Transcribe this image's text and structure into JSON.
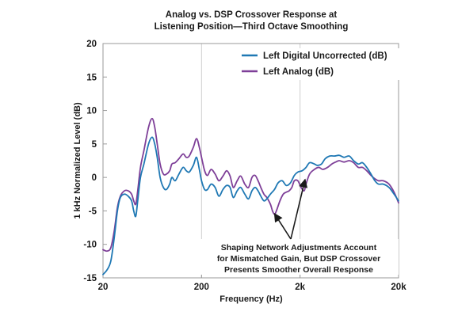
{
  "chart_data": {
    "type": "line",
    "title_lines": [
      "Analog vs. DSP Crossover Response at",
      "Listening Position—Third Octave Smoothing"
    ],
    "xlabel": "Frequency (Hz)",
    "ylabel": "1 kHz Normalized Level (dB)",
    "x_scale": "log",
    "xlim": [
      20,
      20000
    ],
    "ylim": [
      -15,
      20
    ],
    "x_ticks": [
      {
        "value": 20,
        "label": "20"
      },
      {
        "value": 200,
        "label": "200"
      },
      {
        "value": 2000,
        "label": "2k"
      },
      {
        "value": 20000,
        "label": "20k"
      }
    ],
    "y_ticks": [
      {
        "value": 20,
        "label": "20"
      },
      {
        "value": 15,
        "label": "15"
      },
      {
        "value": 10,
        "label": "10"
      },
      {
        "value": 5,
        "label": "5"
      },
      {
        "value": 0,
        "label": "0"
      },
      {
        "value": -5,
        "label": "-5"
      },
      {
        "value": -10,
        "label": "-10"
      },
      {
        "value": -15,
        "label": "-15"
      }
    ],
    "grid": true,
    "legend_position": "top-right",
    "series": [
      {
        "name": "Left Digital Uncorrected (dB)",
        "color": "#1f78b4",
        "points": [
          [
            20,
            -14.5
          ],
          [
            22,
            -13.8
          ],
          [
            24,
            -12.5
          ],
          [
            26,
            -9
          ],
          [
            28,
            -5
          ],
          [
            30,
            -3
          ],
          [
            33,
            -2.5
          ],
          [
            36,
            -2.8
          ],
          [
            39,
            -3.5
          ],
          [
            41,
            -5
          ],
          [
            43,
            -5.8
          ],
          [
            45,
            -3.5
          ],
          [
            48,
            0
          ],
          [
            52,
            2
          ],
          [
            58,
            5
          ],
          [
            63,
            6
          ],
          [
            67,
            5
          ],
          [
            71,
            3
          ],
          [
            76,
            0
          ],
          [
            82,
            -1.5
          ],
          [
            88,
            -1.8
          ],
          [
            95,
            -1
          ],
          [
            100,
            0
          ],
          [
            108,
            -0.5
          ],
          [
            118,
            0.5
          ],
          [
            130,
            1.5
          ],
          [
            140,
            1
          ],
          [
            150,
            0.8
          ],
          [
            165,
            1.8
          ],
          [
            178,
            3
          ],
          [
            190,
            1.2
          ],
          [
            200,
            -0.5
          ],
          [
            215,
            -1.8
          ],
          [
            230,
            -1.8
          ],
          [
            250,
            -1
          ],
          [
            275,
            -1.5
          ],
          [
            300,
            -2.8
          ],
          [
            330,
            -1.8
          ],
          [
            360,
            -1.2
          ],
          [
            390,
            -1.5
          ],
          [
            420,
            -3
          ],
          [
            460,
            -2
          ],
          [
            500,
            -1.5
          ],
          [
            550,
            -2.5
          ],
          [
            600,
            -3.2
          ],
          [
            650,
            -2
          ],
          [
            700,
            -1.5
          ],
          [
            750,
            -2
          ],
          [
            800,
            -2.8
          ],
          [
            860,
            -3.5
          ],
          [
            920,
            -3.2
          ],
          [
            1000,
            -2.5
          ],
          [
            1100,
            -1.8
          ],
          [
            1200,
            -0.8
          ],
          [
            1320,
            -0.5
          ],
          [
            1450,
            -1.2
          ],
          [
            1600,
            -0.8
          ],
          [
            1750,
            0.3
          ],
          [
            1900,
            0.8
          ],
          [
            2100,
            1
          ],
          [
            2300,
            1.5
          ],
          [
            2500,
            2.2
          ],
          [
            2800,
            2
          ],
          [
            3000,
            1.8
          ],
          [
            3300,
            2
          ],
          [
            3600,
            2.8
          ],
          [
            4000,
            3.2
          ],
          [
            4500,
            3.2
          ],
          [
            5000,
            3.3
          ],
          [
            5600,
            3
          ],
          [
            6300,
            3.2
          ],
          [
            7000,
            2.5
          ],
          [
            7800,
            2
          ],
          [
            8600,
            2.2
          ],
          [
            9500,
            1.5
          ],
          [
            10500,
            0.5
          ],
          [
            11500,
            -0.5
          ],
          [
            12500,
            -1
          ],
          [
            14000,
            -1
          ],
          [
            16000,
            -1.5
          ],
          [
            18000,
            -2.5
          ],
          [
            20000,
            -3.5
          ]
        ]
      },
      {
        "name": "Left Analog (dB)",
        "color": "#7e3f98",
        "points": [
          [
            20,
            -10.8
          ],
          [
            22,
            -11
          ],
          [
            24,
            -10.5
          ],
          [
            26,
            -8
          ],
          [
            28,
            -4.5
          ],
          [
            30,
            -2.8
          ],
          [
            33,
            -2
          ],
          [
            36,
            -2
          ],
          [
            39,
            -2.5
          ],
          [
            41,
            -3.5
          ],
          [
            43,
            -4
          ],
          [
            45,
            -2
          ],
          [
            48,
            1.5
          ],
          [
            52,
            4
          ],
          [
            58,
            7.5
          ],
          [
            63,
            8.8
          ],
          [
            67,
            7.5
          ],
          [
            71,
            5
          ],
          [
            76,
            2
          ],
          [
            82,
            0.5
          ],
          [
            88,
            0.5
          ],
          [
            95,
            1
          ],
          [
            100,
            2
          ],
          [
            108,
            2.2
          ],
          [
            118,
            2.8
          ],
          [
            130,
            3.5
          ],
          [
            140,
            3
          ],
          [
            150,
            3.2
          ],
          [
            165,
            4.5
          ],
          [
            178,
            5.8
          ],
          [
            190,
            4.5
          ],
          [
            200,
            3
          ],
          [
            215,
            1
          ],
          [
            230,
            0.3
          ],
          [
            250,
            1.2
          ],
          [
            275,
            0.5
          ],
          [
            300,
            -0.5
          ],
          [
            330,
            0.2
          ],
          [
            360,
            1
          ],
          [
            390,
            0.2
          ],
          [
            420,
            -1.5
          ],
          [
            460,
            -0.5
          ],
          [
            500,
            0.2
          ],
          [
            550,
            -1
          ],
          [
            600,
            -1.5
          ],
          [
            650,
            0
          ],
          [
            700,
            0.3
          ],
          [
            750,
            -0.5
          ],
          [
            800,
            -1.5
          ],
          [
            860,
            -2.5
          ],
          [
            920,
            -3
          ],
          [
            1000,
            -4
          ],
          [
            1050,
            -5
          ],
          [
            1100,
            -5.5
          ],
          [
            1150,
            -5
          ],
          [
            1250,
            -3.5
          ],
          [
            1350,
            -2.5
          ],
          [
            1450,
            -2.2
          ],
          [
            1550,
            -2
          ],
          [
            1650,
            -1.5
          ],
          [
            1750,
            -0.5
          ],
          [
            1900,
            -0.5
          ],
          [
            2050,
            -1.5
          ],
          [
            2200,
            -2
          ],
          [
            2300,
            -1
          ],
          [
            2500,
            0.5
          ],
          [
            2800,
            1.2
          ],
          [
            3100,
            1.5
          ],
          [
            3400,
            1.2
          ],
          [
            3800,
            1.5
          ],
          [
            4200,
            2
          ],
          [
            4600,
            2.3
          ],
          [
            5000,
            2.5
          ],
          [
            5600,
            2.3
          ],
          [
            6300,
            2.5
          ],
          [
            7000,
            2.2
          ],
          [
            7800,
            1.5
          ],
          [
            8600,
            1.5
          ],
          [
            9500,
            1
          ],
          [
            10500,
            0.3
          ],
          [
            11500,
            -0.2
          ],
          [
            12500,
            -0.5
          ],
          [
            14000,
            -0.5
          ],
          [
            16000,
            -1
          ],
          [
            18000,
            -2.2
          ],
          [
            20000,
            -3.8
          ]
        ]
      }
    ],
    "annotation": {
      "lines": [
        "Shaping Network Adjustments Account",
        "for Mismatched Gain, But DSP Crossover",
        "Presents Smoother Overall Response"
      ],
      "arrow_targets": [
        {
          "freq": 1100,
          "level": -5.4
        },
        {
          "freq": 2250,
          "level": -0.3
        }
      ]
    }
  }
}
